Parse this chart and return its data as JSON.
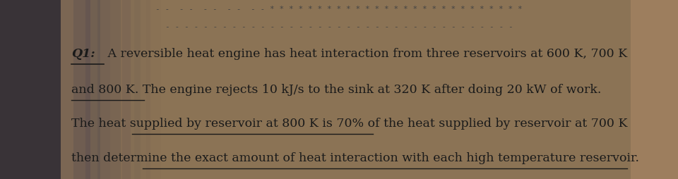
{
  "bg_color": "#8b7355",
  "page_bg": "#dce0e8",
  "shadow_left_color": "#2a2a3a",
  "text_color": "#1a1a1a",
  "deco_line1": "- -  - -  - -  - -  - - * * * * * * * * * * * * * * * * * * * * * * * * * * *",
  "deco_line2": "- - - - - - - - - - - - - - - - - - - - - - - - - - - - - - - - - - - - -",
  "title": "Q1:",
  "line1_rest": " A reversible heat engine has heat interaction from three reservoirs at 600 K, 700 K",
  "line2": "and 800 K. The engine rejects 10 kJ/s to the sink at 320 K after doing 20 kW of work.",
  "line3": "The heat supplied by reservoir at 800 K is 70% of the heat supplied by reservoir at 700 K",
  "line4": "then determine the exact amount of heat interaction with each high temperature reservoir.",
  "font_size": 12.5,
  "deco_font_size": 8.0
}
